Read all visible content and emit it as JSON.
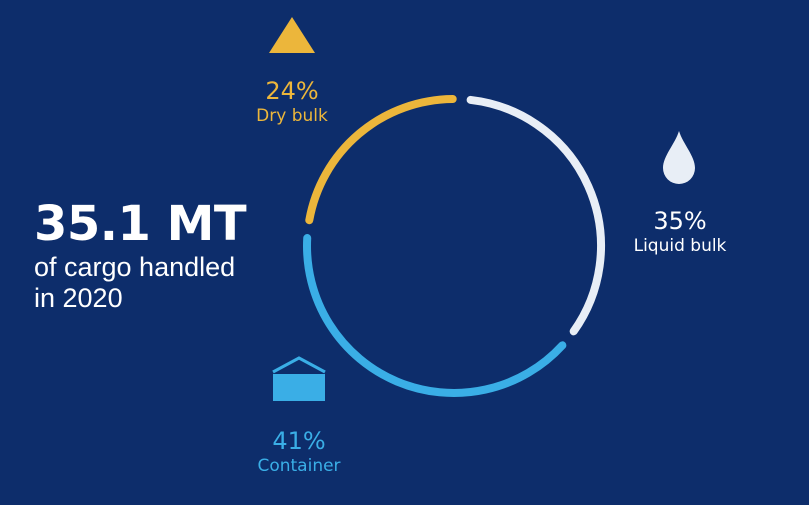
{
  "headline": {
    "value": "35.1 MT",
    "line1": "of cargo handled",
    "line2": "in 2020"
  },
  "colors": {
    "background": "#0d2d6b",
    "dry_bulk": "#ecb63b",
    "liquid_bulk": "#e8eef6",
    "container": "#3aaee6"
  },
  "chart_data": {
    "type": "pie",
    "style": "donut",
    "total": "35.1 MT",
    "slices": [
      {
        "label": "Liquid bulk",
        "value": 35,
        "display": "35%",
        "color": "#e8eef6",
        "icon": "drop-icon"
      },
      {
        "label": "Container",
        "value": 41,
        "display": "41%",
        "color": "#3aaee6",
        "icon": "container-icon"
      },
      {
        "label": "Dry bulk",
        "value": 24,
        "display": "24%",
        "color": "#ecb63b",
        "icon": "triangle-icon"
      }
    ]
  }
}
